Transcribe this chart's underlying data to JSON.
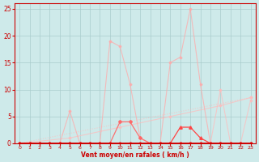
{
  "title": "",
  "xlabel": "Vent moyen/en rafales ( km/h )",
  "ylabel": "",
  "bg_color": "#ceeaea",
  "grid_color": "#aacccc",
  "xlim": [
    -0.5,
    23.5
  ],
  "ylim": [
    0,
    26
  ],
  "yticks": [
    0,
    5,
    10,
    15,
    20,
    25
  ],
  "xticks": [
    0,
    1,
    2,
    3,
    4,
    5,
    6,
    7,
    8,
    9,
    10,
    11,
    12,
    13,
    14,
    15,
    16,
    17,
    18,
    19,
    20,
    21,
    22,
    23
  ],
  "series": [
    {
      "x": [
        0,
        23
      ],
      "y": [
        0,
        8.5
      ],
      "color": "#ffbbbb",
      "lw": 0.8,
      "marker": "D",
      "ms": 1.5,
      "alpha": 0.7,
      "ls": ":"
    },
    {
      "x": [
        0,
        5,
        10,
        15,
        20,
        23
      ],
      "y": [
        0,
        1,
        3,
        5,
        7,
        8.5
      ],
      "color": "#ffbbbb",
      "lw": 0.8,
      "marker": "D",
      "ms": 1.5,
      "alpha": 0.7,
      "ls": "-"
    },
    {
      "x": [
        0,
        1,
        2,
        3,
        4,
        5,
        6,
        7,
        8,
        9,
        10,
        11,
        12,
        13,
        14,
        15,
        16,
        17,
        18,
        19,
        20,
        21,
        22,
        23
      ],
      "y": [
        0,
        0,
        0,
        0,
        0,
        0,
        0,
        0,
        0,
        19,
        18,
        11,
        1,
        0,
        0,
        0,
        0,
        0,
        0,
        0,
        0,
        0,
        0,
        0
      ],
      "color": "#ffaaaa",
      "lw": 0.8,
      "marker": "D",
      "ms": 1.5,
      "alpha": 0.75,
      "ls": "-"
    },
    {
      "x": [
        0,
        1,
        2,
        3,
        4,
        5,
        6,
        7,
        8,
        9,
        10,
        11,
        12,
        13,
        14,
        15,
        16,
        17,
        18,
        19,
        20,
        21,
        22,
        23
      ],
      "y": [
        0,
        0,
        0,
        0,
        0,
        6,
        0,
        0,
        0,
        0,
        0,
        0,
        0,
        0,
        0,
        0,
        0,
        0,
        0,
        0,
        0,
        0,
        0,
        0
      ],
      "color": "#ffaaaa",
      "lw": 0.8,
      "marker": "D",
      "ms": 1.5,
      "alpha": 0.75,
      "ls": "-"
    },
    {
      "comment": "medium pink series right side: x=15->16->17->18: 15,16,25,11->x=20:10->x=23:8",
      "x": [
        0,
        1,
        2,
        3,
        4,
        5,
        6,
        7,
        8,
        9,
        10,
        11,
        12,
        13,
        14,
        15,
        16,
        17,
        18,
        19,
        20,
        21,
        22,
        23
      ],
      "y": [
        0,
        0,
        0,
        0,
        0,
        0,
        0,
        0,
        0,
        0,
        0,
        0,
        0,
        0,
        0,
        15,
        16,
        25,
        11,
        0,
        0,
        0,
        0,
        0
      ],
      "color": "#ffaaaa",
      "lw": 0.8,
      "marker": "D",
      "ms": 1.5,
      "alpha": 0.75,
      "ls": "-"
    },
    {
      "comment": "pink series x=20: 10, x=23: 8",
      "x": [
        0,
        1,
        2,
        3,
        4,
        5,
        6,
        7,
        8,
        9,
        10,
        11,
        12,
        13,
        14,
        15,
        16,
        17,
        18,
        19,
        20,
        21,
        22,
        23
      ],
      "y": [
        0,
        0,
        0,
        0,
        0,
        0,
        0,
        0,
        0,
        0,
        0,
        0,
        0,
        0,
        0,
        0,
        0,
        0,
        0,
        0,
        10,
        0,
        0,
        8
      ],
      "color": "#ffbbbb",
      "lw": 0.8,
      "marker": "D",
      "ms": 1.5,
      "alpha": 0.7,
      "ls": "-"
    },
    {
      "x": [
        0,
        1,
        2,
        3,
        4,
        5,
        6,
        7,
        8,
        9,
        10,
        11,
        12,
        13,
        14,
        15,
        16,
        17,
        18,
        19,
        20,
        21,
        22,
        23
      ],
      "y": [
        0,
        0,
        0,
        0,
        0,
        0,
        0,
        0,
        0,
        0,
        4,
        4,
        1,
        0,
        0,
        0,
        0,
        0,
        0,
        0,
        0,
        0,
        0,
        0
      ],
      "color": "#ff6666",
      "lw": 0.9,
      "marker": "D",
      "ms": 2,
      "alpha": 0.9,
      "ls": "-"
    },
    {
      "comment": "dark red series right: x=16,17,18 -> 3,3,1",
      "x": [
        0,
        1,
        2,
        3,
        4,
        5,
        6,
        7,
        8,
        9,
        10,
        11,
        12,
        13,
        14,
        15,
        16,
        17,
        18,
        19,
        20,
        21,
        22,
        23
      ],
      "y": [
        0,
        0,
        0,
        0,
        0,
        0,
        0,
        0,
        0,
        0,
        0,
        0,
        0,
        0,
        0,
        0,
        3,
        3,
        1,
        0,
        0,
        0,
        0,
        0
      ],
      "color": "#ff4444",
      "lw": 0.9,
      "marker": "^",
      "ms": 2.5,
      "alpha": 1.0,
      "ls": "-"
    },
    {
      "x": [
        0,
        1,
        2,
        3,
        4,
        5,
        6,
        7,
        8,
        9,
        10,
        11,
        12,
        13,
        14,
        15,
        16,
        17,
        18,
        19,
        20,
        21,
        22,
        23
      ],
      "y": [
        0,
        0,
        0,
        0,
        0,
        0,
        0,
        0,
        0,
        0,
        0,
        0,
        0,
        0,
        0,
        0,
        0,
        0,
        0,
        0,
        0,
        0,
        0,
        0
      ],
      "color": "#cc0000",
      "lw": 1.2,
      "marker": "s",
      "ms": 2,
      "alpha": 1.0,
      "ls": "-"
    }
  ]
}
